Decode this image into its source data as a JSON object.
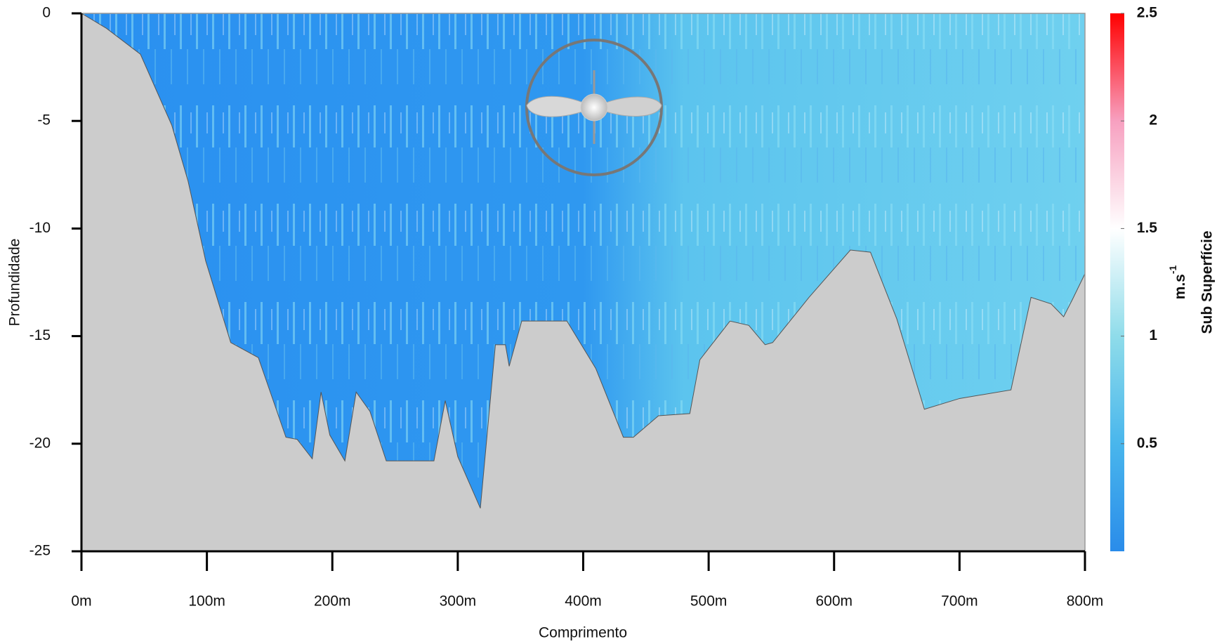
{
  "chart_data": {
    "type": "area",
    "x_label": "Comprimento",
    "y_label": "Profundidade",
    "x": [
      0,
      20,
      47,
      72,
      85,
      99,
      119,
      141,
      163,
      172,
      184,
      191,
      198,
      210,
      219,
      230,
      243,
      281,
      290,
      300,
      318,
      330,
      338,
      341,
      351,
      387,
      410,
      432,
      440,
      460,
      485,
      493,
      517,
      532,
      545,
      551,
      580,
      613,
      629,
      650,
      672,
      700,
      741,
      757,
      773,
      783,
      790,
      800
    ],
    "values": [
      0,
      -0.7,
      -1.9,
      -5.2,
      -7.8,
      -11.5,
      -15.3,
      -16,
      -19.7,
      -19.8,
      -20.7,
      -17.6,
      -19.6,
      -20.8,
      -17.6,
      -18.5,
      -20.8,
      -20.8,
      -18,
      -20.6,
      -23,
      -15.4,
      -15.4,
      -16.4,
      -14.3,
      -14.3,
      -16.5,
      -19.7,
      -19.7,
      -18.7,
      -18.6,
      -16.1,
      -14.3,
      -14.5,
      -15.4,
      -15.3,
      -13.2,
      -11,
      -11.1,
      -14.2,
      -18.4,
      -17.9,
      -17.5,
      -13.2,
      -13.5,
      -14.1,
      -13.3,
      -12.1
    ],
    "color": "#cccccc",
    "water_color": "#2a90f0",
    "xlim": [
      0,
      800
    ],
    "xticks": [
      {
        "value": 0,
        "label": "0m"
      },
      {
        "value": 100,
        "label": "100m"
      },
      {
        "value": 200,
        "label": "200m"
      },
      {
        "value": 300,
        "label": "300m"
      },
      {
        "value": 400,
        "label": "400m"
      },
      {
        "value": 500,
        "label": "500m"
      },
      {
        "value": 600,
        "label": "600m"
      },
      {
        "value": 700,
        "label": "700m"
      },
      {
        "value": 800,
        "label": "800m"
      }
    ],
    "ylim": [
      -25,
      0
    ],
    "yticks": [
      0,
      -5,
      -10,
      -15,
      -20,
      -25
    ],
    "colorbar_label": "Sub Superfície",
    "colorbar_unit": {
      "base": "m.s",
      "exponent": "-1"
    },
    "colorbar_lim": [
      0,
      2.5
    ],
    "colorbar_ticks": [
      0.5,
      1,
      1.5,
      2,
      2.5
    ],
    "colorbar_colors": [
      "#2a8cea",
      "#49b6ec",
      "#8fdcea",
      "#ffffff",
      "#f7a0c0",
      "#ff0000"
    ]
  }
}
